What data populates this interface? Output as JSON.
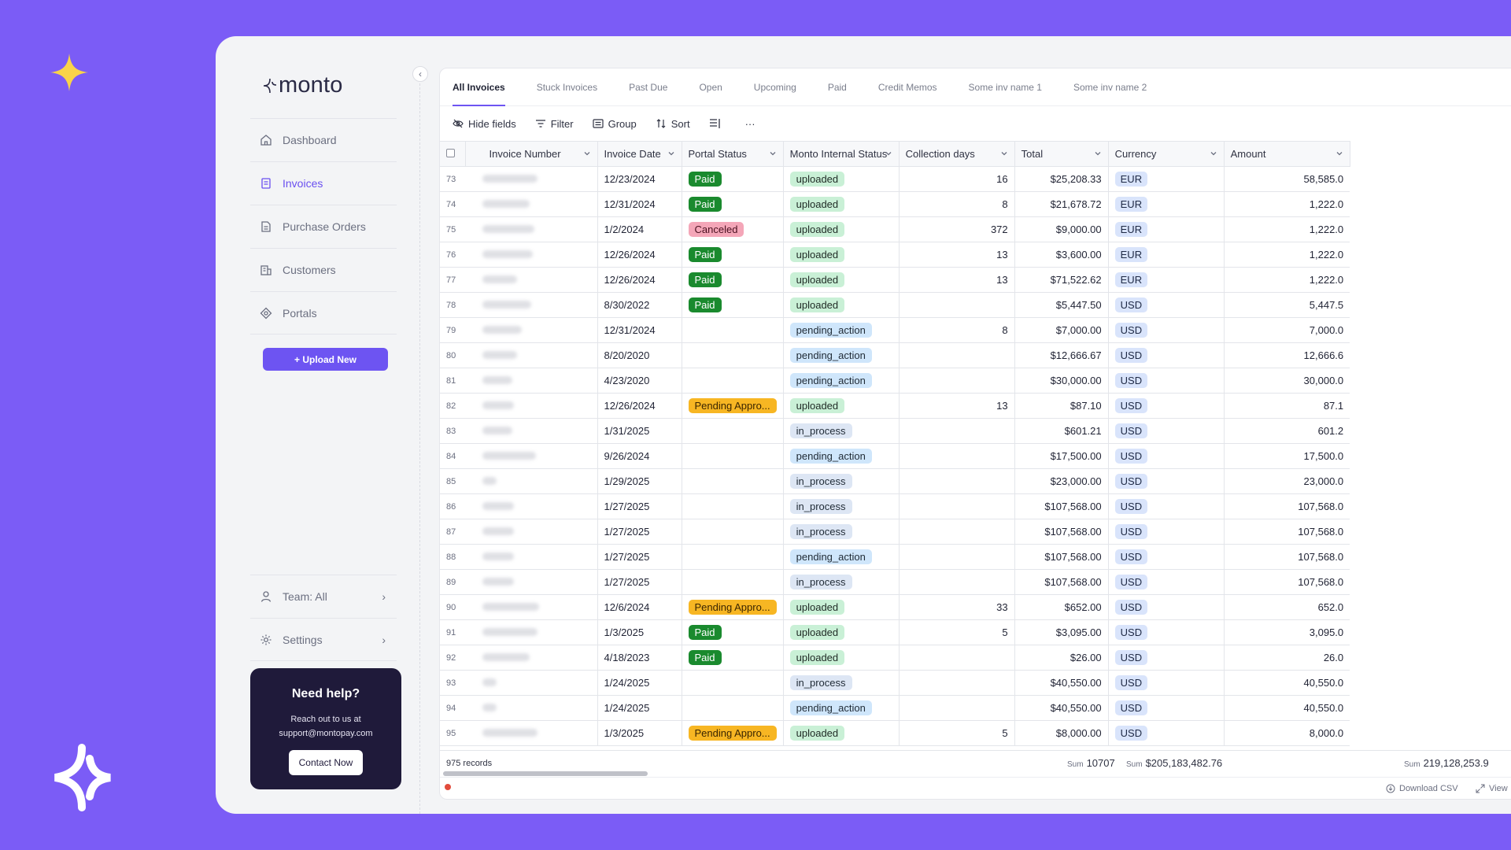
{
  "brand": {
    "logo_text": "monto"
  },
  "sidebar": {
    "items": [
      {
        "label": "Dashboard",
        "icon": "home-icon"
      },
      {
        "label": "Invoices",
        "icon": "invoice-icon"
      },
      {
        "label": "Purchase Orders",
        "icon": "document-icon"
      },
      {
        "label": "Customers",
        "icon": "building-icon"
      },
      {
        "label": "Portals",
        "icon": "portal-icon"
      }
    ],
    "upload_label": "+ Upload New",
    "team_label": "Team: All",
    "settings_label": "Settings"
  },
  "help": {
    "title": "Need help?",
    "text": "Reach out to us at",
    "email": "support@montopay.com",
    "button": "Contact Now"
  },
  "tabs": [
    "All Invoices",
    "Stuck Invoices",
    "Past Due",
    "Open",
    "Upcoming",
    "Paid",
    "Credit Memos",
    "Some inv name 1",
    "Some inv name 2"
  ],
  "toolbar": {
    "hide_fields": "Hide fields",
    "filter": "Filter",
    "group": "Group",
    "sort": "Sort",
    "more": "···"
  },
  "table": {
    "columns": [
      "Invoice Number",
      "Invoice Date",
      "Portal Status",
      "Monto Internal Status",
      "Collection days",
      "Total",
      "Currency",
      "Amount"
    ],
    "rows": [
      {
        "idx": "73",
        "date": "12/23/2024",
        "portal": "Paid",
        "internal": "uploaded",
        "days": "16",
        "total": "$25,208.33",
        "currency": "EUR",
        "amount": "58,585.0"
      },
      {
        "idx": "74",
        "date": "12/31/2024",
        "portal": "Paid",
        "internal": "uploaded",
        "days": "8",
        "total": "$21,678.72",
        "currency": "EUR",
        "amount": "1,222.0"
      },
      {
        "idx": "75",
        "date": "1/2/2024",
        "portal": "Canceled",
        "internal": "uploaded",
        "days": "372",
        "total": "$9,000.00",
        "currency": "EUR",
        "amount": "1,222.0"
      },
      {
        "idx": "76",
        "date": "12/26/2024",
        "portal": "Paid",
        "internal": "uploaded",
        "days": "13",
        "total": "$3,600.00",
        "currency": "EUR",
        "amount": "1,222.0"
      },
      {
        "idx": "77",
        "date": "12/26/2024",
        "portal": "Paid",
        "internal": "uploaded",
        "days": "13",
        "total": "$71,522.62",
        "currency": "EUR",
        "amount": "1,222.0"
      },
      {
        "idx": "78",
        "date": "8/30/2022",
        "portal": "Paid",
        "internal": "uploaded",
        "days": "",
        "total": "$5,447.50",
        "currency": "USD",
        "amount": "5,447.5"
      },
      {
        "idx": "79",
        "date": "12/31/2024",
        "portal": "",
        "internal": "pending_action",
        "days": "8",
        "total": "$7,000.00",
        "currency": "USD",
        "amount": "7,000.0"
      },
      {
        "idx": "80",
        "date": "8/20/2020",
        "portal": "",
        "internal": "pending_action",
        "days": "",
        "total": "$12,666.67",
        "currency": "USD",
        "amount": "12,666.6"
      },
      {
        "idx": "81",
        "date": "4/23/2020",
        "portal": "",
        "internal": "pending_action",
        "days": "",
        "total": "$30,000.00",
        "currency": "USD",
        "amount": "30,000.0"
      },
      {
        "idx": "82",
        "date": "12/26/2024",
        "portal": "Pending Appro...",
        "internal": "uploaded",
        "days": "13",
        "total": "$87.10",
        "currency": "USD",
        "amount": "87.1"
      },
      {
        "idx": "83",
        "date": "1/31/2025",
        "portal": "",
        "internal": "in_process",
        "days": "",
        "total": "$601.21",
        "currency": "USD",
        "amount": "601.2"
      },
      {
        "idx": "84",
        "date": "9/26/2024",
        "portal": "",
        "internal": "pending_action",
        "days": "",
        "total": "$17,500.00",
        "currency": "USD",
        "amount": "17,500.0"
      },
      {
        "idx": "85",
        "date": "1/29/2025",
        "portal": "",
        "internal": "in_process",
        "days": "",
        "total": "$23,000.00",
        "currency": "USD",
        "amount": "23,000.0"
      },
      {
        "idx": "86",
        "date": "1/27/2025",
        "portal": "",
        "internal": "in_process",
        "days": "",
        "total": "$107,568.00",
        "currency": "USD",
        "amount": "107,568.0"
      },
      {
        "idx": "87",
        "date": "1/27/2025",
        "portal": "",
        "internal": "in_process",
        "days": "",
        "total": "$107,568.00",
        "currency": "USD",
        "amount": "107,568.0"
      },
      {
        "idx": "88",
        "date": "1/27/2025",
        "portal": "",
        "internal": "pending_action",
        "days": "",
        "total": "$107,568.00",
        "currency": "USD",
        "amount": "107,568.0"
      },
      {
        "idx": "89",
        "date": "1/27/2025",
        "portal": "",
        "internal": "in_process",
        "days": "",
        "total": "$107,568.00",
        "currency": "USD",
        "amount": "107,568.0"
      },
      {
        "idx": "90",
        "date": "12/6/2024",
        "portal": "Pending Appro...",
        "internal": "uploaded",
        "days": "33",
        "total": "$652.00",
        "currency": "USD",
        "amount": "652.0"
      },
      {
        "idx": "91",
        "date": "1/3/2025",
        "portal": "Paid",
        "internal": "uploaded",
        "days": "5",
        "total": "$3,095.00",
        "currency": "USD",
        "amount": "3,095.0"
      },
      {
        "idx": "92",
        "date": "4/18/2023",
        "portal": "Paid",
        "internal": "uploaded",
        "days": "",
        "total": "$26.00",
        "currency": "USD",
        "amount": "26.0"
      },
      {
        "idx": "93",
        "date": "1/24/2025",
        "portal": "",
        "internal": "in_process",
        "days": "",
        "total": "$40,550.00",
        "currency": "USD",
        "amount": "40,550.0"
      },
      {
        "idx": "94",
        "date": "1/24/2025",
        "portal": "",
        "internal": "pending_action",
        "days": "",
        "total": "$40,550.00",
        "currency": "USD",
        "amount": "40,550.0"
      },
      {
        "idx": "95",
        "date": "1/3/2025",
        "portal": "Pending Appro...",
        "internal": "uploaded",
        "days": "5",
        "total": "$8,000.00",
        "currency": "USD",
        "amount": "8,000.0"
      }
    ]
  },
  "footer": {
    "records": "975 records",
    "sum_label": "Sum",
    "sum_days": "10707",
    "sum_total": "$205,183,482.76",
    "sum_amount": "219,128,253.9",
    "download": "Download CSV",
    "view": "View"
  },
  "colors": {
    "background": "#7b5cf6",
    "accent": "#6d54f2",
    "paid": "#1a8a2e",
    "canceled": "#f4a6b8",
    "pending": "#f7b623",
    "help_bg": "#1f1a3a",
    "spark": "#f9d34a"
  }
}
